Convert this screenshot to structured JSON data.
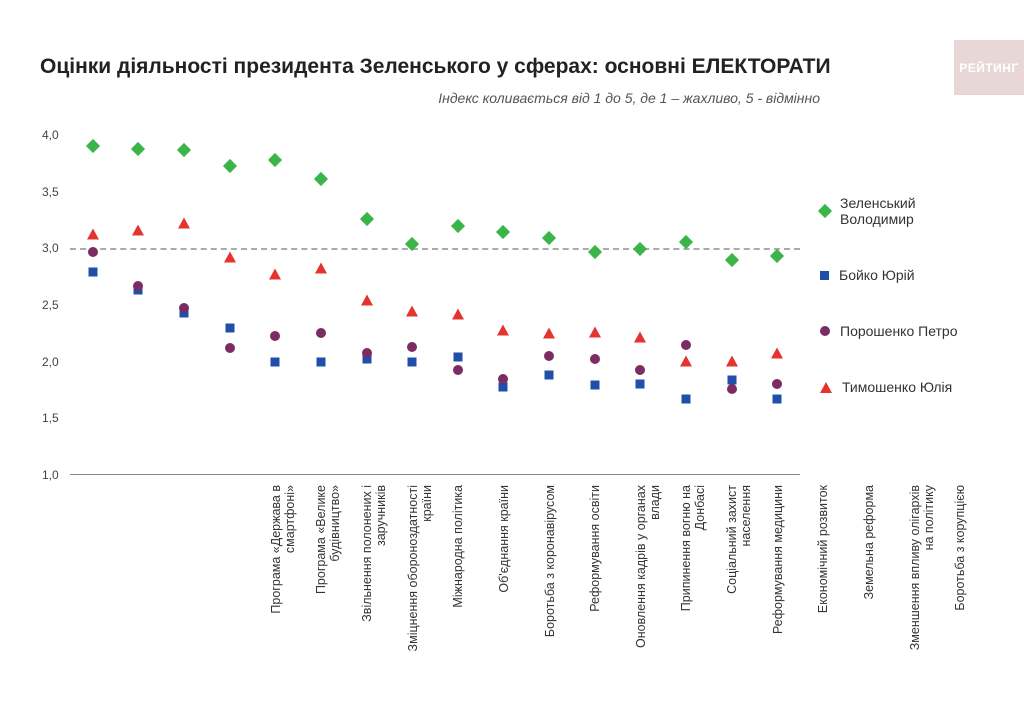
{
  "brand": "РЕЙТИНГ",
  "title": "Оцінки діяльності президента Зеленського у сферах: основні ЕЛЕКТОРАТИ",
  "subtitle": "Індекс коливається від 1 до 5, де 1 – жахливо, 5 - відмінно",
  "chart": {
    "type": "scatter",
    "background_color": "#ffffff",
    "grid_color": "#c9c9c9",
    "ref_line_y": 3.0,
    "ref_line_color": "#aaaaaa",
    "ylim": [
      1.0,
      4.0
    ],
    "ytick_step": 0.5,
    "yticks": [
      "1,0",
      "1,5",
      "2,0",
      "2,5",
      "3,0",
      "3,5",
      "4,0"
    ],
    "label_fontsize": 12,
    "categories": [
      "Програма «Держава в смартфоні»",
      "Програма «Велике будівництво»",
      "Звільнення полонених і заручників",
      "Зміцнення обороноздатності країни",
      "Міжнародна політика",
      "Об'єднання країни",
      "Боротьба з коронавірусом",
      "Реформування освіти",
      "Оновлення кадрів у органах влади",
      "Припинення вогню на Донбасі",
      "Соціальний захист населення",
      "Реформування медицини",
      "Економічний розвиток",
      "Земельна реформа",
      "Зменшення впливу олігархів на політику",
      "Боротьба з корупцією"
    ],
    "series": [
      {
        "name": "Зеленський Володимир",
        "marker": "diamond",
        "color": "#3bb54a",
        "values": [
          3.9,
          3.88,
          3.87,
          3.73,
          3.78,
          3.61,
          3.26,
          3.04,
          3.2,
          3.14,
          3.09,
          2.97,
          2.99,
          3.06,
          2.9,
          2.93
        ]
      },
      {
        "name": "Бойко Юрій",
        "marker": "square",
        "color": "#1f4fa8",
        "values": [
          2.79,
          2.63,
          2.43,
          2.3,
          2.0,
          2.0,
          2.02,
          2.0,
          2.04,
          1.78,
          1.88,
          1.79,
          1.8,
          1.67,
          1.84,
          1.67
        ]
      },
      {
        "name": "Порошенко Петро",
        "marker": "circle",
        "color": "#7a2c63",
        "values": [
          2.97,
          2.67,
          2.47,
          2.12,
          2.23,
          2.25,
          2.08,
          2.13,
          1.93,
          1.85,
          2.05,
          2.02,
          1.93,
          2.15,
          1.76,
          1.8
        ]
      },
      {
        "name": "Тимошенко Юлія",
        "marker": "triangle",
        "color": "#e3342f",
        "values": [
          3.13,
          3.16,
          3.22,
          2.92,
          2.77,
          2.83,
          2.54,
          2.45,
          2.42,
          2.28,
          2.25,
          2.26,
          2.22,
          2.01,
          2.01,
          2.08
        ]
      }
    ]
  }
}
